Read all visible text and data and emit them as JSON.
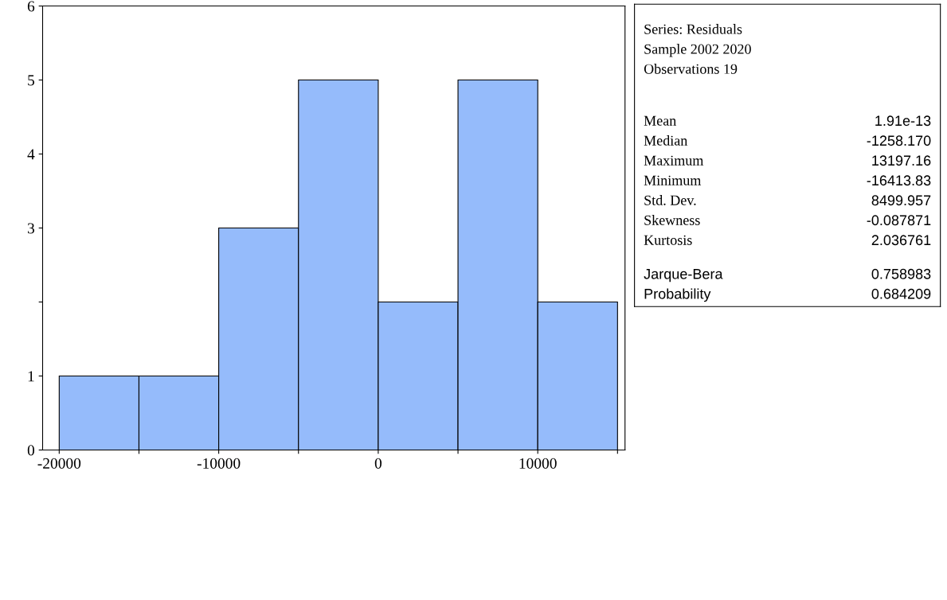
{
  "chart_data": {
    "type": "histogram",
    "bins": [
      -20000,
      -15000,
      -10000,
      -5000,
      0,
      5000,
      10000,
      15000
    ],
    "values": [
      1,
      1,
      3,
      5,
      2,
      5,
      2
    ],
    "color": "#95bbfb",
    "xlim": [
      -21040,
      15470
    ],
    "xticks": [
      -20000,
      {
        "value": -15000,
        "label": null
      },
      -10000,
      {
        "value": -5000,
        "label": null
      },
      0,
      {
        "value": 5000,
        "label": null
      },
      10000,
      {
        "value": 15000,
        "label": null
      }
    ],
    "ylim": [
      0,
      6
    ],
    "yticks": [
      0,
      1,
      {
        "value": 2,
        "label": null
      },
      3,
      4,
      5,
      6
    ],
    "grid": false,
    "legend": false,
    "annotations": [
      "Series: Residuals",
      "Sample 2002 2020",
      "Observations 19",
      "Mean",
      "1.91e-13",
      "Median",
      "-1258.170",
      "Maximum",
      "13197.16",
      "Minimum",
      "-16413.83",
      "Std. Dev.",
      "8499.957",
      "Skewness",
      "-0.087871",
      "Kurtosis",
      "2.036761",
      "Jarque-Bera",
      "0.758983",
      "Probability",
      "0.684209"
    ]
  }
}
